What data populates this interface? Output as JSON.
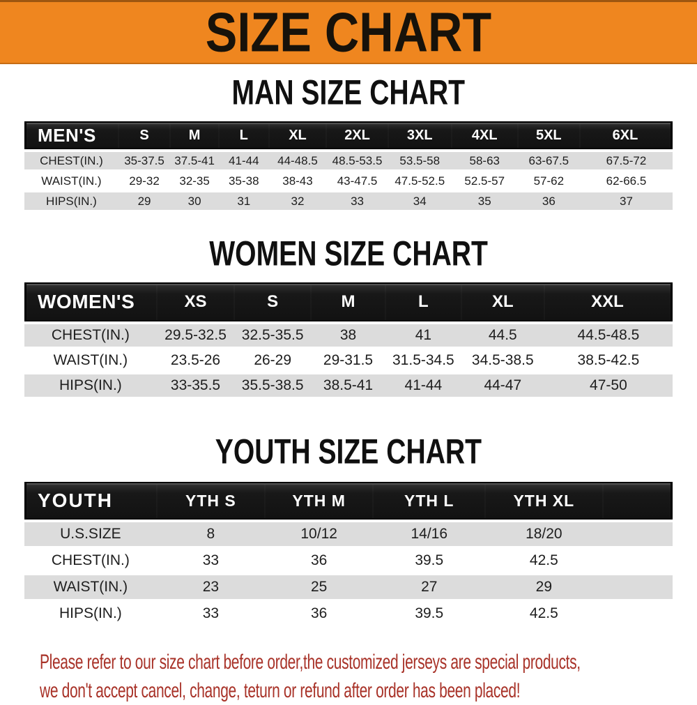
{
  "banner": {
    "title": "SIZE CHART",
    "bg_color": "#EF861F"
  },
  "chart_data": [
    {
      "type": "table",
      "title": "MAN SIZE CHART",
      "corner_label": "MEN'S",
      "columns": [
        "S",
        "M",
        "L",
        "XL",
        "2XL",
        "3XL",
        "4XL",
        "5XL",
        "6XL"
      ],
      "rows": [
        {
          "label": "CHEST(IN.)",
          "values": [
            "35-37.5",
            "37.5-41",
            "41-44",
            "44-48.5",
            "48.5-53.5",
            "53.5-58",
            "58-63",
            "63-67.5",
            "67.5-72"
          ]
        },
        {
          "label": "WAIST(IN.)",
          "values": [
            "29-32",
            "32-35",
            "35-38",
            "38-43",
            "43-47.5",
            "47.5-52.5",
            "52.5-57",
            "57-62",
            "62-66.5"
          ]
        },
        {
          "label": "HIPS(IN.)",
          "values": [
            "29",
            "30",
            "31",
            "32",
            "33",
            "34",
            "35",
            "36",
            "37"
          ]
        }
      ]
    },
    {
      "type": "table",
      "title": "WOMEN SIZE CHART",
      "corner_label": "WOMEN'S",
      "columns": [
        "XS",
        "S",
        "M",
        "L",
        "XL",
        "XXL"
      ],
      "rows": [
        {
          "label": "CHEST(IN.)",
          "values": [
            "29.5-32.5",
            "32.5-35.5",
            "38",
            "41",
            "44.5",
            "44.5-48.5"
          ]
        },
        {
          "label": "WAIST(IN.)",
          "values": [
            "23.5-26",
            "26-29",
            "29-31.5",
            "31.5-34.5",
            "34.5-38.5",
            "38.5-42.5"
          ]
        },
        {
          "label": "HIPS(IN.)",
          "values": [
            "33-35.5",
            "35.5-38.5",
            "38.5-41",
            "41-44",
            "44-47",
            "47-50"
          ]
        }
      ]
    },
    {
      "type": "table",
      "title": "YOUTH SIZE CHART",
      "corner_label": "YOUTH",
      "columns": [
        "YTH S",
        "YTH M",
        "YTH L",
        "YTH XL"
      ],
      "rows": [
        {
          "label": "U.S.SIZE",
          "values": [
            "8",
            "10/12",
            "14/16",
            "18/20"
          ]
        },
        {
          "label": "CHEST(IN.)",
          "values": [
            "33",
            "36",
            "39.5",
            "42.5"
          ]
        },
        {
          "label": "WAIST(IN.)",
          "values": [
            "23",
            "25",
            "27",
            "29"
          ]
        },
        {
          "label": "HIPS(IN.)",
          "values": [
            "33",
            "36",
            "39.5",
            "42.5"
          ]
        }
      ]
    }
  ],
  "footer": {
    "line1": "Please refer to our size chart before order,the customized jerseys are special products,",
    "line2": "we don't accept cancel, change, teturn or refund after order has been placed!",
    "text_color": "#A83228"
  },
  "colors": {
    "banner_orange": "#EF861F",
    "header_bar_black": "#181818",
    "row_gray": "#DCDCDC",
    "footer_red": "#A83228"
  }
}
